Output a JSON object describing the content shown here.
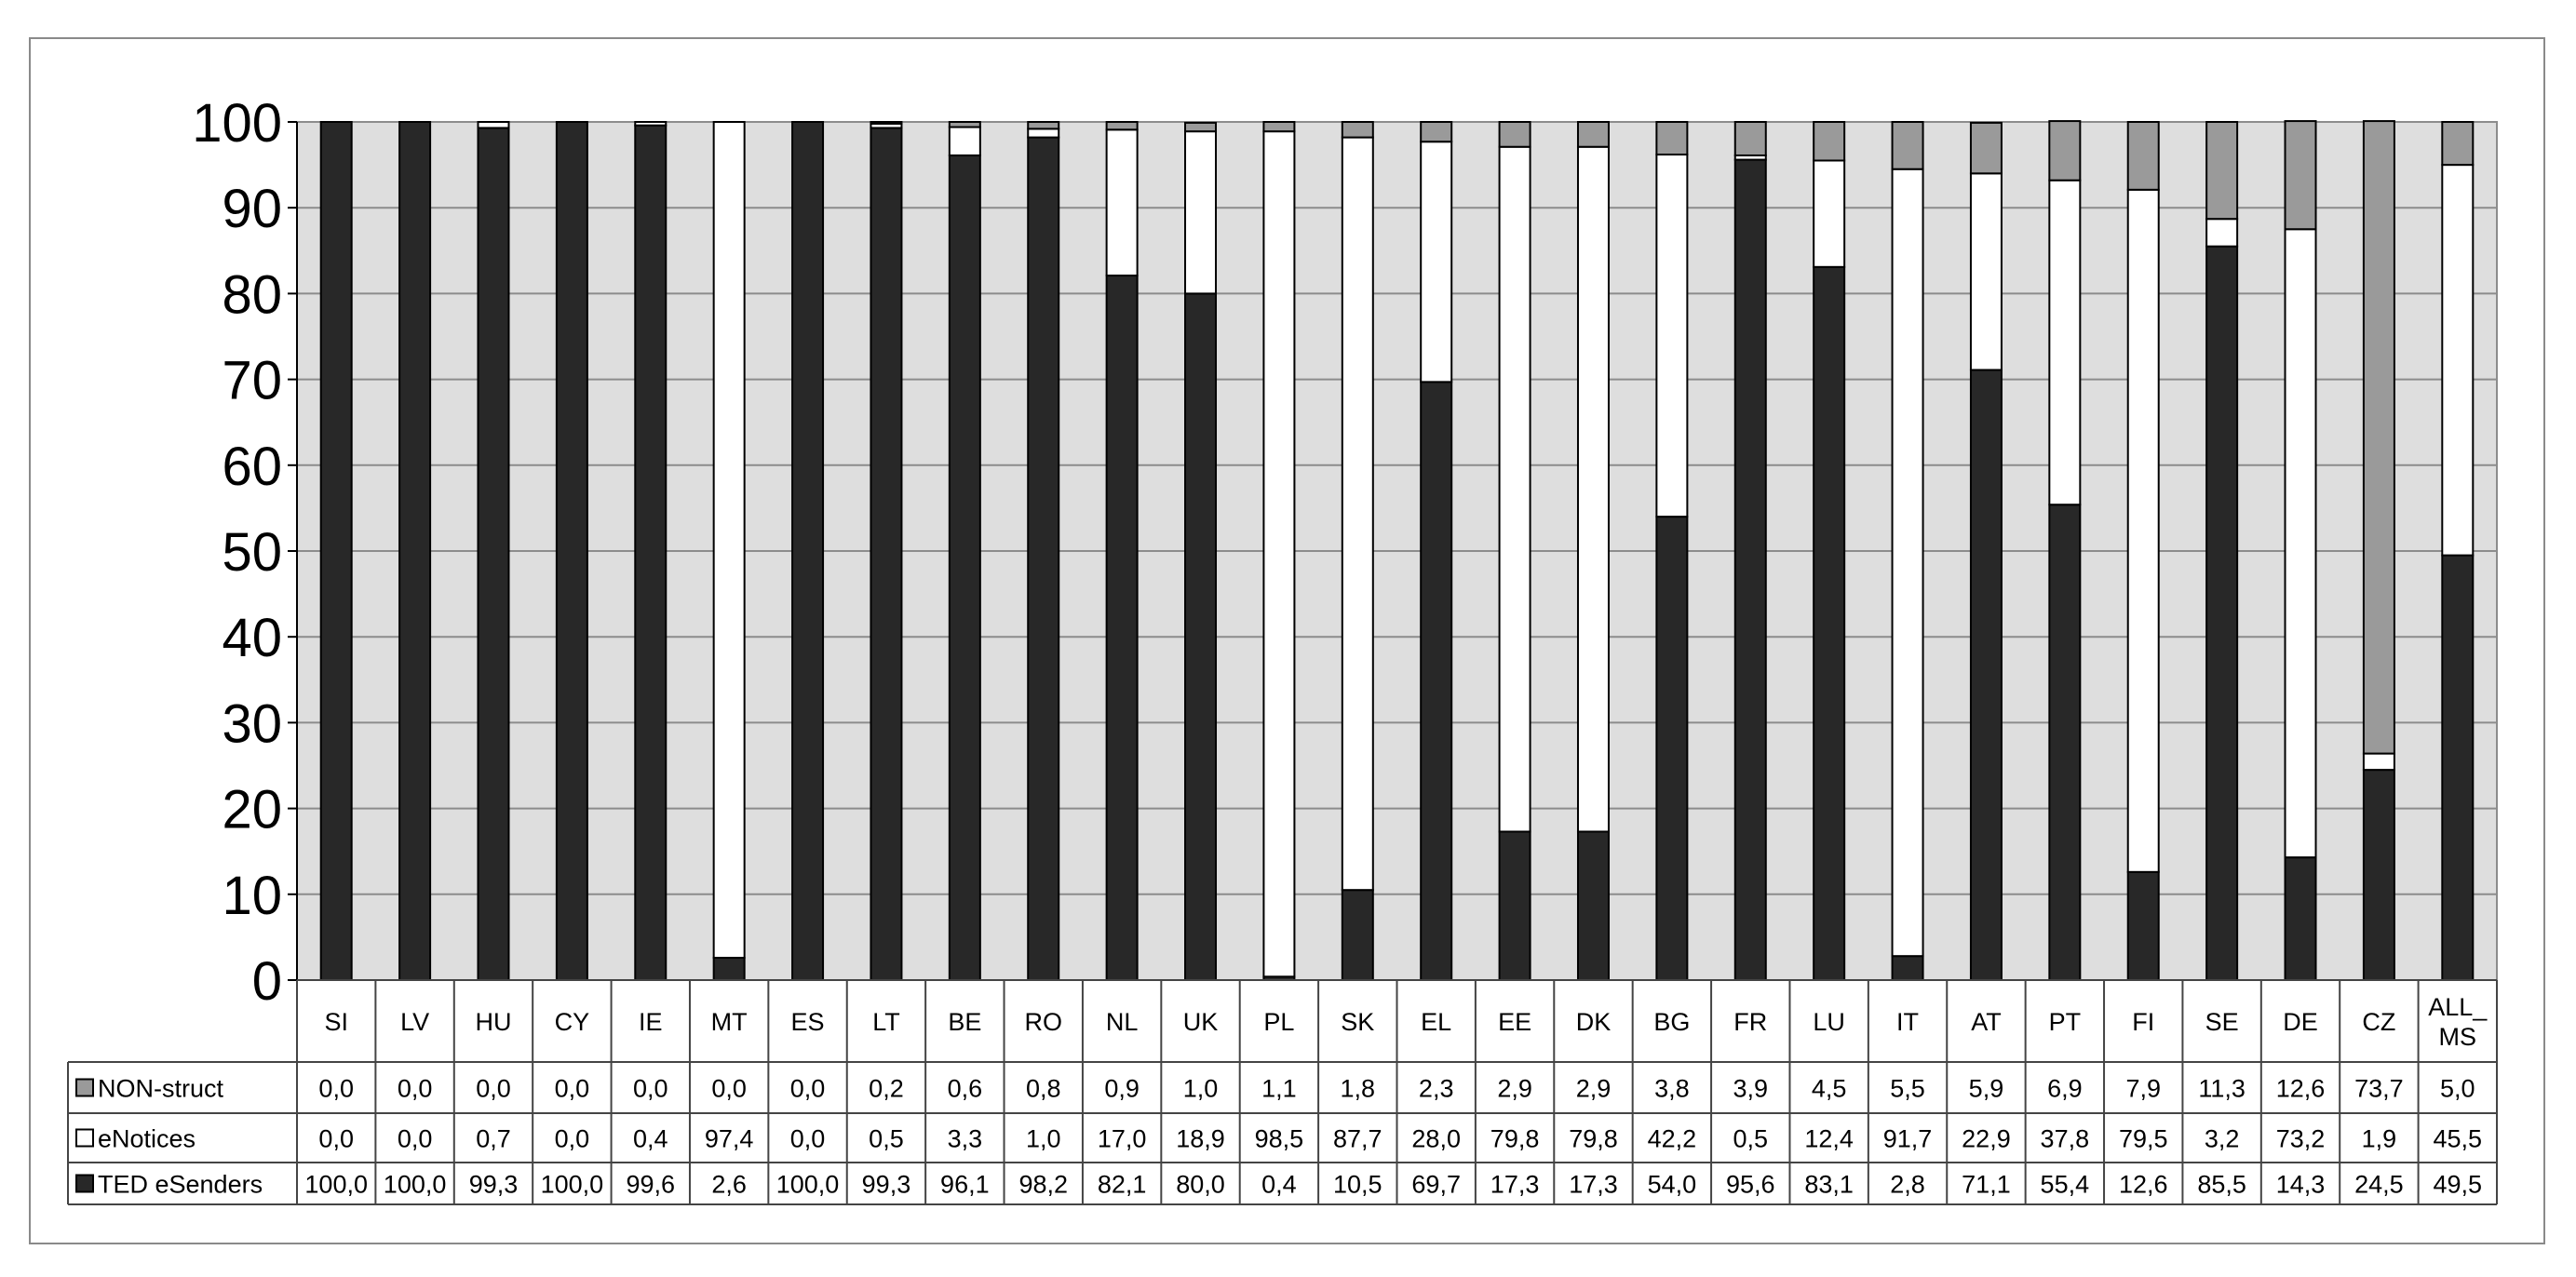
{
  "chart_data": {
    "type": "bar",
    "stacked": true,
    "categories": [
      "SI",
      "LV",
      "HU",
      "CY",
      "IE",
      "MT",
      "ES",
      "LT",
      "BE",
      "RO",
      "NL",
      "UK",
      "PL",
      "SK",
      "EL",
      "EE",
      "DK",
      "BG",
      "FR",
      "LU",
      "IT",
      "AT",
      "PT",
      "FI",
      "SE",
      "DE",
      "CZ",
      "ALL_ MS"
    ],
    "series": [
      {
        "name": "TED eSenders",
        "color": "#282828",
        "values": [
          100.0,
          100.0,
          99.3,
          100.0,
          99.6,
          2.6,
          100.0,
          99.3,
          96.1,
          98.2,
          82.1,
          80.0,
          0.4,
          10.5,
          69.7,
          17.3,
          17.3,
          54.0,
          95.6,
          83.1,
          2.8,
          71.1,
          55.4,
          12.6,
          85.5,
          14.3,
          24.5,
          49.5
        ],
        "labels": [
          "100,0",
          "100,0",
          "99,3",
          "100,0",
          "99,6",
          "2,6",
          "100,0",
          "99,3",
          "96,1",
          "98,2",
          "82,1",
          "80,0",
          "0,4",
          "10,5",
          "69,7",
          "17,3",
          "17,3",
          "54,0",
          "95,6",
          "83,1",
          "2,8",
          "71,1",
          "55,4",
          "12,6",
          "85,5",
          "14,3",
          "24,5",
          "49,5"
        ]
      },
      {
        "name": "eNotices",
        "color": "#ffffff",
        "values": [
          0.0,
          0.0,
          0.7,
          0.0,
          0.4,
          97.4,
          0.0,
          0.5,
          3.3,
          1.0,
          17.0,
          18.9,
          98.5,
          87.7,
          28.0,
          79.8,
          79.8,
          42.2,
          0.5,
          12.4,
          91.7,
          22.9,
          37.8,
          79.5,
          3.2,
          73.2,
          1.9,
          45.5
        ],
        "labels": [
          "0,0",
          "0,0",
          "0,7",
          "0,0",
          "0,4",
          "97,4",
          "0,0",
          "0,5",
          "3,3",
          "1,0",
          "17,0",
          "18,9",
          "98,5",
          "87,7",
          "28,0",
          "79,8",
          "79,8",
          "42,2",
          "0,5",
          "12,4",
          "91,7",
          "22,9",
          "37,8",
          "79,5",
          "3,2",
          "73,2",
          "1,9",
          "45,5"
        ]
      },
      {
        "name": "NON-struct",
        "color": "#9a9a9a",
        "values": [
          0.0,
          0.0,
          0.0,
          0.0,
          0.0,
          0.0,
          0.0,
          0.2,
          0.6,
          0.8,
          0.9,
          1.0,
          1.1,
          1.8,
          2.3,
          2.9,
          2.9,
          3.8,
          3.9,
          4.5,
          5.5,
          5.9,
          6.9,
          7.9,
          11.3,
          12.6,
          73.7,
          5.0
        ],
        "labels": [
          "0,0",
          "0,0",
          "0,0",
          "0,0",
          "0,0",
          "0,0",
          "0,0",
          "0,2",
          "0,6",
          "0,8",
          "0,9",
          "1,0",
          "1,1",
          "1,8",
          "2,3",
          "2,9",
          "2,9",
          "3,8",
          "3,9",
          "4,5",
          "5,5",
          "5,9",
          "6,9",
          "7,9",
          "11,3",
          "12,6",
          "73,7",
          "5,0"
        ]
      }
    ],
    "table_row_order": [
      "NON-struct",
      "eNotices",
      "TED eSenders"
    ],
    "yticks": [
      "0",
      "10",
      "20",
      "30",
      "40",
      "50",
      "60",
      "70",
      "80",
      "90",
      "100"
    ],
    "ylim": [
      0,
      100
    ],
    "grid": true,
    "plot_background": "#dedede",
    "legend": "data-table-left"
  }
}
